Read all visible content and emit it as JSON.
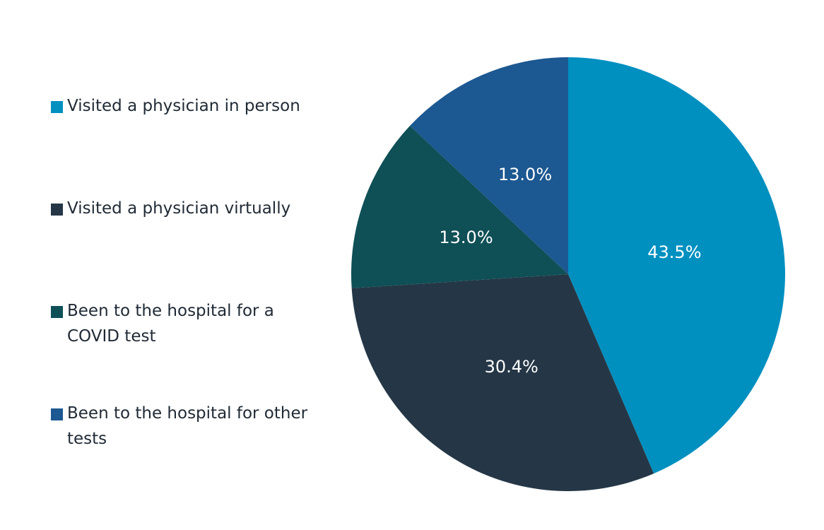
{
  "chart_data": {
    "type": "pie",
    "title": "",
    "categories": [
      "Visited a physician in person",
      "Visited a physician virtually",
      "Been to the hospital for a COVID test",
      "Been to the hospital for other tests"
    ],
    "values": [
      43.5,
      30.4,
      13.0,
      13.0
    ],
    "value_labels": [
      "43.5%",
      "30.4%",
      "13.0%",
      "13.0%"
    ],
    "colors": [
      "#0090c0",
      "#253746",
      "#0f4f56",
      "#1c5891"
    ],
    "legend_position": "left",
    "start_angle_deg": 0,
    "direction": "clockwise"
  }
}
